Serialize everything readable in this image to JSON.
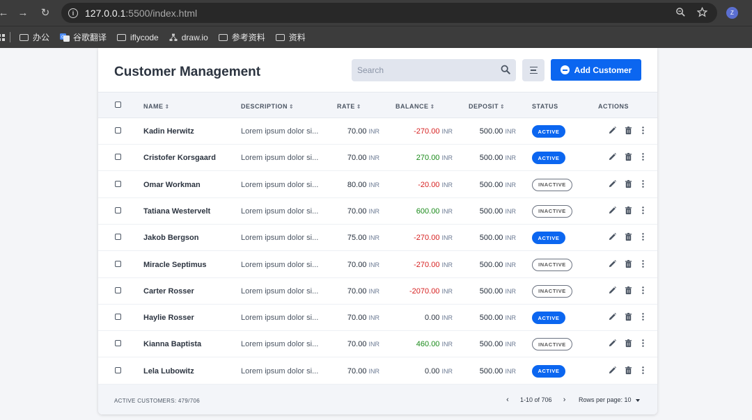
{
  "browser": {
    "url_host": "127.0.0.1",
    "url_path": ":5500/index.html",
    "profile_initial": "Z",
    "bookmarks": [
      {
        "label": "办公",
        "icon": "folder-icon"
      },
      {
        "label": "谷歌翻译",
        "icon": "translate-icon"
      },
      {
        "label": "iflycode",
        "icon": "folder-icon"
      },
      {
        "label": "draw.io",
        "icon": "drawio-icon"
      },
      {
        "label": "参考资料",
        "icon": "folder-icon"
      },
      {
        "label": "资料",
        "icon": "folder-icon"
      }
    ]
  },
  "header": {
    "title": "Customer Management",
    "search_placeholder": "Search",
    "add_button_label": "Add Customer"
  },
  "columns": {
    "name": "NAME",
    "description": "DESCRIPTION",
    "rate": "RATE",
    "balance": "BALANCE",
    "deposit": "DEPOSIT",
    "status": "STATUS",
    "actions": "ACTIONS"
  },
  "currency": "INR",
  "customers": [
    {
      "name": "Kadin Herwitz",
      "description": "Lorem ipsum dolor si...",
      "rate": "70.00",
      "balance": "-270.00",
      "balance_sign": "neg",
      "deposit": "500.00",
      "status": "ACTIVE"
    },
    {
      "name": "Cristofer Korsgaard",
      "description": "Lorem ipsum dolor si...",
      "rate": "70.00",
      "balance": "270.00",
      "balance_sign": "pos",
      "deposit": "500.00",
      "status": "ACTIVE"
    },
    {
      "name": "Omar Workman",
      "description": "Lorem ipsum dolor si...",
      "rate": "80.00",
      "balance": "-20.00",
      "balance_sign": "neg",
      "deposit": "500.00",
      "status": "INACTIVE"
    },
    {
      "name": "Tatiana Westervelt",
      "description": "Lorem ipsum dolor si...",
      "rate": "70.00",
      "balance": "600.00",
      "balance_sign": "pos",
      "deposit": "500.00",
      "status": "INACTIVE"
    },
    {
      "name": "Jakob Bergson",
      "description": "Lorem ipsum dolor si...",
      "rate": "75.00",
      "balance": "-270.00",
      "balance_sign": "neg",
      "deposit": "500.00",
      "status": "ACTIVE"
    },
    {
      "name": "Miracle Septimus",
      "description": "Lorem ipsum dolor si...",
      "rate": "70.00",
      "balance": "-270.00",
      "balance_sign": "neg",
      "deposit": "500.00",
      "status": "INACTIVE"
    },
    {
      "name": "Carter Rosser",
      "description": "Lorem ipsum dolor si...",
      "rate": "70.00",
      "balance": "-2070.00",
      "balance_sign": "neg",
      "deposit": "500.00",
      "status": "INACTIVE"
    },
    {
      "name": "Haylie Rosser",
      "description": "Lorem ipsum dolor si...",
      "rate": "70.00",
      "balance": "0.00",
      "balance_sign": "zero",
      "deposit": "500.00",
      "status": "ACTIVE"
    },
    {
      "name": "Kianna Baptista",
      "description": "Lorem ipsum dolor si...",
      "rate": "70.00",
      "balance": "460.00",
      "balance_sign": "pos",
      "deposit": "500.00",
      "status": "INACTIVE"
    },
    {
      "name": "Lela Lubowitz",
      "description": "Lorem ipsum dolor si...",
      "rate": "70.00",
      "balance": "0.00",
      "balance_sign": "zero",
      "deposit": "500.00",
      "status": "ACTIVE"
    }
  ],
  "footer": {
    "active_customers": "ACTIVE CUSTOMERS: 479/706",
    "page_range": "1-10 of 706",
    "rows_per_page": "Rows per page: 10"
  },
  "colors": {
    "accent": "#0b66f0",
    "negative": "#d61f1f",
    "positive": "#1a8a1a"
  }
}
